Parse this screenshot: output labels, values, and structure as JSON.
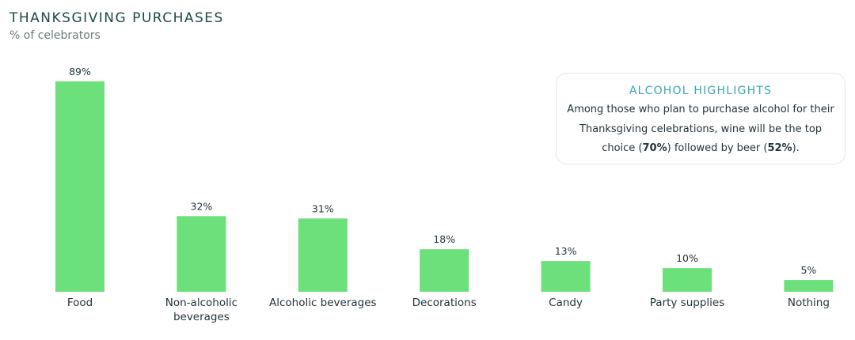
{
  "chart_data": {
    "type": "bar",
    "title": "THANKSGIVING PURCHASES",
    "subtitle": "% of celebrators",
    "categories": [
      "Food",
      "Non-alcoholic beverages",
      "Alcoholic beverages",
      "Decorations",
      "Candy",
      "Party supplies",
      "Nothing"
    ],
    "values": [
      89,
      32,
      31,
      18,
      13,
      10,
      5
    ],
    "value_labels": [
      "89%",
      "32%",
      "31%",
      "18%",
      "13%",
      "10%",
      "5%"
    ],
    "color": "#6ce07a",
    "annotation": {
      "title": "ALCOHOL HIGHLIGHTS",
      "body": [
        "Among those who plan to purchase alcohol for their Thanksgiving celebrations, wine will be the top choice (",
        "70%",
        ") followed by beer (",
        "52%",
        ")."
      ]
    }
  }
}
